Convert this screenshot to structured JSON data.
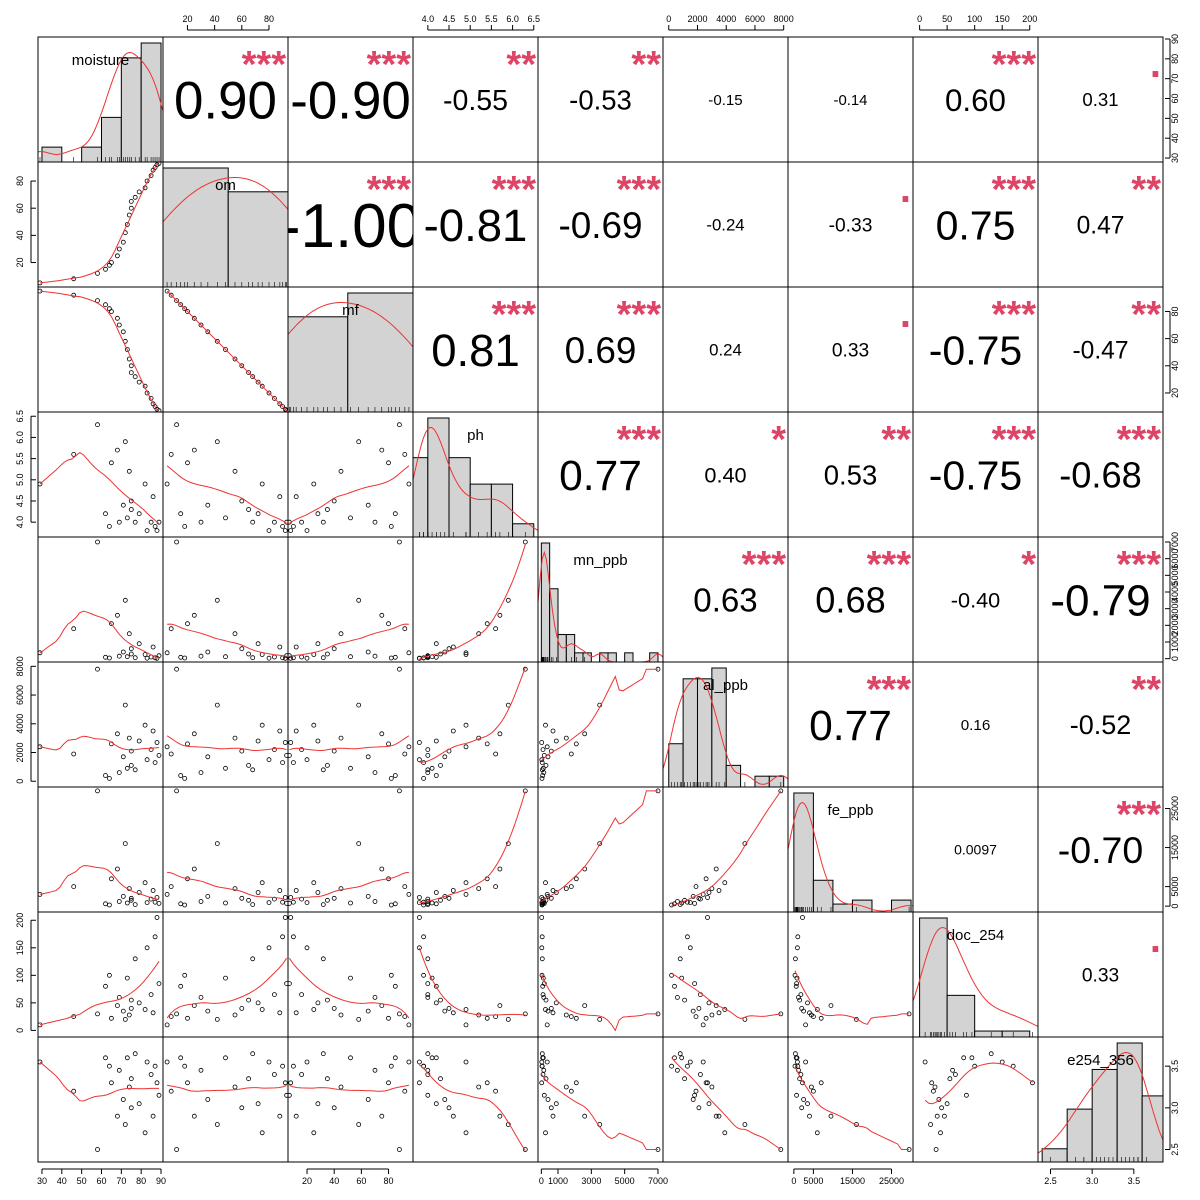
{
  "chart_data": {
    "type": "scatter-matrix",
    "title": "",
    "variables": [
      "moisture",
      "om",
      "mf",
      "ph",
      "mn_ppb",
      "al_ppb",
      "fe_ppb",
      "doc_254",
      "e254_356"
    ],
    "ranges": [
      [
        28,
        91
      ],
      [
        2,
        94
      ],
      [
        6,
        98
      ],
      [
        3.65,
        6.6
      ],
      [
        -200,
        7300
      ],
      [
        -400,
        8300
      ],
      [
        -1500,
        30500
      ],
      [
        -12,
        215
      ],
      [
        2.35,
        3.85
      ]
    ],
    "axes": {
      "top": {
        "1": {
          "ticks": [
            20,
            40,
            60,
            80
          ],
          "labels": [
            "20",
            "40",
            "60",
            "80"
          ]
        },
        "3": {
          "ticks": [
            4.0,
            4.5,
            5.0,
            5.5,
            6.0,
            6.5
          ],
          "labels": [
            "4.0",
            "4.5",
            "5.0",
            "5.5",
            "6.0",
            "6.5"
          ]
        },
        "5": {
          "ticks": [
            0,
            2000,
            4000,
            6000,
            8000
          ],
          "labels": [
            "0",
            "2000",
            "4000",
            "6000",
            "8000"
          ]
        },
        "7": {
          "ticks": [
            0,
            50,
            100,
            150,
            200
          ],
          "labels": [
            "0",
            "50",
            "100",
            "150",
            "200"
          ]
        }
      },
      "bottom": {
        "0": {
          "ticks": [
            30,
            40,
            50,
            60,
            70,
            80,
            90
          ],
          "labels": [
            "30",
            "40",
            "50",
            "60",
            "70",
            "80",
            "90"
          ]
        },
        "2": {
          "ticks": [
            20,
            40,
            60,
            80
          ],
          "labels": [
            "20",
            "40",
            "60",
            "80"
          ]
        },
        "4": {
          "ticks": [
            0,
            1000,
            3000,
            5000,
            7000
          ],
          "labels": [
            "0",
            "1000",
            "3000",
            "5000",
            "7000"
          ]
        },
        "6": {
          "ticks": [
            0,
            5000,
            15000,
            25000
          ],
          "labels": [
            "0",
            "5000",
            "15000",
            "25000"
          ]
        },
        "8": {
          "ticks": [
            2.5,
            3.0,
            3.5
          ],
          "labels": [
            "2.5",
            "3.0",
            "3.5"
          ]
        }
      },
      "left": {
        "1": {
          "ticks": [
            20,
            40,
            60,
            80
          ],
          "labels": [
            "20",
            "40",
            "60",
            "80"
          ]
        },
        "3": {
          "ticks": [
            4.0,
            4.5,
            5.0,
            5.5,
            6.0,
            6.5
          ],
          "labels": [
            "4.0",
            "4.5",
            "5.0",
            "5.5",
            "6.0",
            "6.5"
          ]
        },
        "5": {
          "ticks": [
            0,
            2000,
            4000,
            6000,
            8000
          ],
          "labels": [
            "0",
            "2000",
            "4000",
            "6000",
            "8000"
          ]
        },
        "7": {
          "ticks": [
            0,
            50,
            100,
            150,
            200
          ],
          "labels": [
            "0",
            "50",
            "100",
            "150",
            "200"
          ]
        }
      },
      "right": {
        "0": {
          "ticks": [
            30,
            40,
            50,
            60,
            70,
            80,
            90
          ],
          "labels": [
            "30",
            "40",
            "50",
            "60",
            "70",
            "80",
            "90"
          ]
        },
        "2": {
          "ticks": [
            20,
            40,
            60,
            80
          ],
          "labels": [
            "20",
            "40",
            "60",
            "80"
          ]
        },
        "4": {
          "ticks": [
            0,
            1000,
            2000,
            3000,
            4000,
            5000,
            6000,
            7000
          ],
          "labels": [
            "0",
            "1000",
            "2000",
            "3000",
            "4000",
            "5000",
            "6000",
            "7000"
          ]
        },
        "6": {
          "ticks": [
            0,
            5000,
            15000,
            25000
          ],
          "labels": [
            "0",
            "5000",
            "15000",
            "25000"
          ]
        },
        "8": {
          "ticks": [
            2.5,
            3.0,
            3.5
          ],
          "labels": [
            "2.5",
            "3.0",
            "3.5"
          ]
        }
      }
    },
    "correlations": [
      {
        "row": 0,
        "col": 1,
        "value": "0.90",
        "stars": "***"
      },
      {
        "row": 0,
        "col": 2,
        "value": "-0.90",
        "stars": "***"
      },
      {
        "row": 0,
        "col": 3,
        "value": "-0.55",
        "stars": "**"
      },
      {
        "row": 0,
        "col": 4,
        "value": "-0.53",
        "stars": "**"
      },
      {
        "row": 0,
        "col": 5,
        "value": "-0.15",
        "stars": ""
      },
      {
        "row": 0,
        "col": 6,
        "value": "-0.14",
        "stars": ""
      },
      {
        "row": 0,
        "col": 7,
        "value": "0.60",
        "stars": "***"
      },
      {
        "row": 0,
        "col": 8,
        "value": "0.31",
        "stars": "."
      },
      {
        "row": 1,
        "col": 2,
        "value": "-1.00",
        "stars": "***"
      },
      {
        "row": 1,
        "col": 3,
        "value": "-0.81",
        "stars": "***"
      },
      {
        "row": 1,
        "col": 4,
        "value": "-0.69",
        "stars": "***"
      },
      {
        "row": 1,
        "col": 5,
        "value": "-0.24",
        "stars": ""
      },
      {
        "row": 1,
        "col": 6,
        "value": "-0.33",
        "stars": "."
      },
      {
        "row": 1,
        "col": 7,
        "value": "0.75",
        "stars": "***"
      },
      {
        "row": 1,
        "col": 8,
        "value": "0.47",
        "stars": "**"
      },
      {
        "row": 2,
        "col": 3,
        "value": "0.81",
        "stars": "***"
      },
      {
        "row": 2,
        "col": 4,
        "value": "0.69",
        "stars": "***"
      },
      {
        "row": 2,
        "col": 5,
        "value": "0.24",
        "stars": ""
      },
      {
        "row": 2,
        "col": 6,
        "value": "0.33",
        "stars": "."
      },
      {
        "row": 2,
        "col": 7,
        "value": "-0.75",
        "stars": "***"
      },
      {
        "row": 2,
        "col": 8,
        "value": "-0.47",
        "stars": "**"
      },
      {
        "row": 3,
        "col": 4,
        "value": "0.77",
        "stars": "***"
      },
      {
        "row": 3,
        "col": 5,
        "value": "0.40",
        "stars": "*"
      },
      {
        "row": 3,
        "col": 6,
        "value": "0.53",
        "stars": "**"
      },
      {
        "row": 3,
        "col": 7,
        "value": "-0.75",
        "stars": "***"
      },
      {
        "row": 3,
        "col": 8,
        "value": "-0.68",
        "stars": "***"
      },
      {
        "row": 4,
        "col": 5,
        "value": "0.63",
        "stars": "***"
      },
      {
        "row": 4,
        "col": 6,
        "value": "0.68",
        "stars": "***"
      },
      {
        "row": 4,
        "col": 7,
        "value": "-0.40",
        "stars": "*"
      },
      {
        "row": 4,
        "col": 8,
        "value": "-0.79",
        "stars": "***"
      },
      {
        "row": 5,
        "col": 6,
        "value": "0.77",
        "stars": "***"
      },
      {
        "row": 5,
        "col": 7,
        "value": "0.16",
        "stars": ""
      },
      {
        "row": 5,
        "col": 8,
        "value": "-0.52",
        "stars": "**"
      },
      {
        "row": 6,
        "col": 7,
        "value": "0.0097",
        "stars": ""
      },
      {
        "row": 6,
        "col": 8,
        "value": "-0.70",
        "stars": "***"
      },
      {
        "row": 7,
        "col": 8,
        "value": "0.33",
        "stars": "."
      }
    ],
    "histograms": [
      {
        "breaks": [
          30,
          40,
          50,
          60,
          70,
          80,
          90
        ],
        "counts": [
          1,
          0,
          1,
          3,
          7,
          8
        ]
      },
      {
        "breaks": [
          0,
          50,
          100
        ],
        "counts": [
          10,
          8
        ]
      },
      {
        "breaks": [
          0,
          50,
          100
        ],
        "counts": [
          8,
          10
        ]
      },
      {
        "breaks": [
          3.5,
          4.0,
          4.5,
          5.0,
          5.5,
          6.0,
          6.5
        ],
        "counts": [
          6,
          9,
          6,
          4,
          4,
          1
        ]
      },
      {
        "breaks": [
          0,
          500,
          1000,
          1500,
          2000,
          2500,
          3000,
          3500,
          4000,
          4500,
          5000,
          5500,
          6000,
          6500,
          7000
        ],
        "counts": [
          13,
          8,
          3,
          3,
          1,
          1,
          0,
          1,
          1,
          0,
          1,
          0,
          0,
          1
        ]
      },
      {
        "breaks": [
          0,
          1000,
          2000,
          3000,
          4000,
          5000,
          6000,
          7000,
          8000
        ],
        "counts": [
          4,
          10,
          10,
          11,
          2,
          0,
          1,
          1
        ]
      },
      {
        "breaks": [
          0,
          5000,
          10000,
          15000,
          20000,
          25000,
          30000
        ],
        "counts": [
          30,
          8,
          2,
          3,
          0,
          3
        ]
      },
      {
        "breaks": [
          0,
          50,
          100,
          150,
          200,
          250
        ],
        "counts": [
          20,
          7,
          1,
          1,
          0
        ]
      },
      {
        "breaks": [
          2.4,
          2.7,
          3.0,
          3.3,
          3.6,
          3.9
        ],
        "counts": [
          1,
          4,
          7,
          9,
          5
        ]
      }
    ],
    "observations": {
      "moisture": [
        29,
        46,
        58,
        62,
        64,
        65,
        68,
        69,
        71,
        72,
        73,
        74,
        75,
        75,
        77,
        79,
        82,
        83,
        85,
        86,
        87,
        88,
        89
      ],
      "om": [
        5,
        8,
        12,
        15,
        18,
        20,
        25,
        30,
        35,
        42,
        48,
        55,
        60,
        65,
        68,
        72,
        75,
        80,
        84,
        88,
        90,
        92,
        93
      ],
      "mf": [
        95,
        92,
        88,
        85,
        82,
        80,
        75,
        70,
        65,
        58,
        52,
        45,
        40,
        35,
        32,
        28,
        25,
        20,
        16,
        12,
        10,
        8,
        7
      ],
      "ph": [
        4.9,
        5.6,
        6.3,
        4.2,
        3.9,
        5.4,
        5.7,
        4.0,
        4.4,
        5.9,
        4.1,
        5.2,
        4.5,
        4.3,
        4.0,
        4.2,
        4.9,
        3.8,
        4.0,
        4.6,
        3.9,
        3.8,
        4.0
      ],
      "mn_ppb": [
        350,
        1800,
        7000,
        80,
        40,
        2100,
        2600,
        150,
        400,
        3500,
        120,
        1500,
        600,
        280,
        60,
        900,
        250,
        30,
        100,
        700,
        50,
        20,
        180
      ],
      "al_ppb": [
        2400,
        1900,
        7800,
        400,
        200,
        2600,
        3300,
        600,
        1700,
        5300,
        900,
        3000,
        2100,
        1100,
        800,
        2800,
        3900,
        1500,
        2200,
        3500,
        1300,
        2700,
        1800
      ],
      "fe_ppb": [
        3000,
        5000,
        29500,
        600,
        300,
        7000,
        9500,
        1200,
        2500,
        16000,
        800,
        4500,
        2000,
        1500,
        400,
        3500,
        6000,
        900,
        1800,
        4000,
        1000,
        2200,
        700
      ],
      "doc_254": [
        10,
        25,
        30,
        80,
        100,
        22,
        45,
        60,
        35,
        20,
        95,
        28,
        40,
        55,
        130,
        50,
        38,
        150,
        65,
        32,
        170,
        205,
        85
      ],
      "e254_356": [
        3.55,
        3.2,
        2.5,
        3.6,
        3.5,
        3.3,
        2.9,
        3.45,
        3.1,
        2.8,
        3.6,
        3.25,
        3.0,
        3.35,
        3.65,
        3.05,
        2.7,
        3.55,
        3.4,
        2.9,
        3.5,
        3.3,
        3.15
      ]
    }
  }
}
